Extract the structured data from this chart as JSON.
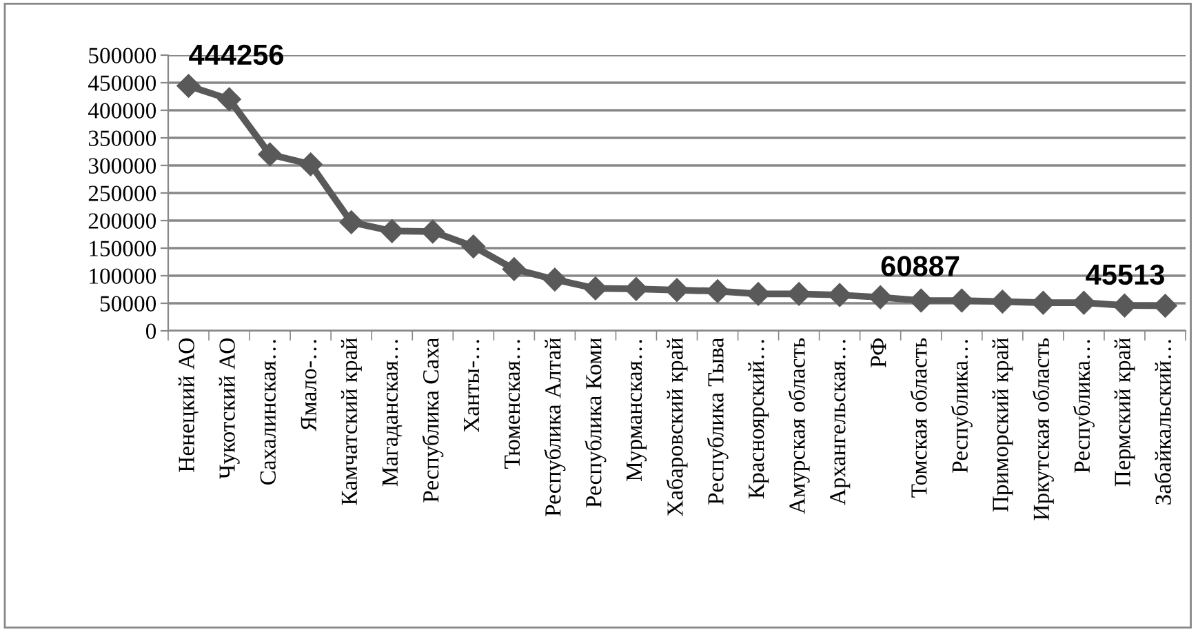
{
  "chart_data": {
    "type": "line",
    "categories": [
      "Ненецкий АО",
      "Чукотский АО",
      "Сахалинская…",
      "Ямало-…",
      "Камчатский край",
      "Магаданская…",
      "Республика Саха",
      "Ханты-…",
      "Тюменская…",
      "Республика Алтай",
      "Республика Коми",
      "Мурманская…",
      "Хабаровский край",
      "Республика Тыва",
      "Красноярский…",
      "Амурская область",
      "Архангельская…",
      "РФ",
      "Томская область",
      "Республика…",
      "Приморский край",
      "Иркутская область",
      "Республика…",
      "Пермский край",
      "Забайкальский…"
    ],
    "series": [
      {
        "color": "#595959",
        "values": [
          444256,
          420000,
          320000,
          302000,
          197000,
          181000,
          180000,
          153000,
          112000,
          93000,
          77000,
          76000,
          74000,
          72000,
          67000,
          67000,
          65000,
          60887,
          55000,
          55000,
          53000,
          51000,
          51000,
          46000,
          45513
        ],
        "value_labels": [
          "444256",
          null,
          null,
          null,
          null,
          null,
          null,
          null,
          null,
          null,
          null,
          null,
          null,
          null,
          null,
          null,
          null,
          "60887",
          null,
          null,
          null,
          null,
          null,
          null,
          "45513"
        ]
      }
    ],
    "ylim": [
      0,
      500000
    ],
    "yticks": [
      0,
      50000,
      100000,
      150000,
      200000,
      250000,
      300000,
      350000,
      400000,
      450000,
      500000
    ],
    "grid": "y",
    "marker": "diamond",
    "line_style": "solid",
    "legend": false
  }
}
